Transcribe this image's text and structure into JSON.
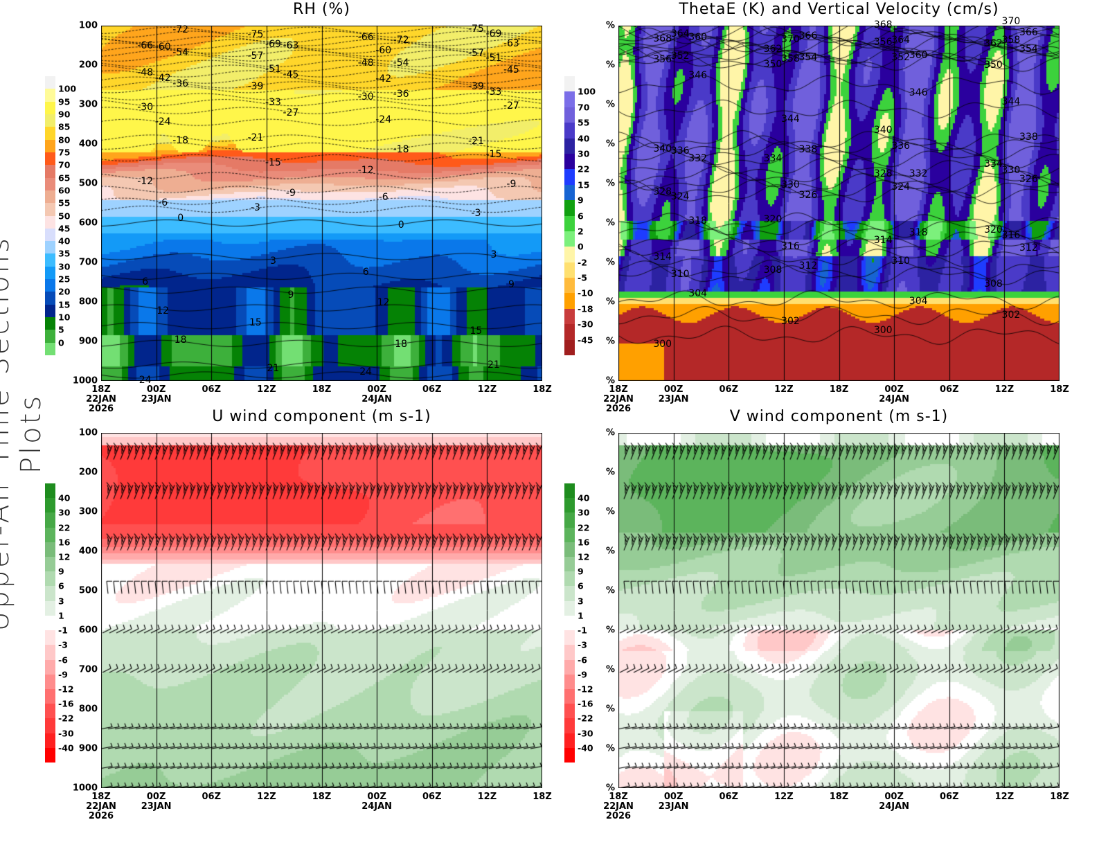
{
  "figure_title": "Upper-Air Time Sections Plots",
  "chart_data": [
    {
      "type": "heatmap",
      "title": "RH (%)",
      "ylabel": "",
      "y_ticks": [
        "100",
        "200",
        "300",
        "400",
        "500",
        "600",
        "700",
        "800",
        "900",
        "1000"
      ],
      "ylim": [
        100,
        1000
      ],
      "y_reversed": true,
      "x_ticks": [
        {
          "label": "18Z",
          "date": "22JAN",
          "year": "2026"
        },
        {
          "label": "00Z",
          "date": "23JAN"
        },
        {
          "label": "06Z"
        },
        {
          "label": "12Z"
        },
        {
          "label": "18Z"
        },
        {
          "label": "00Z",
          "date": "24JAN"
        },
        {
          "label": "06Z"
        },
        {
          "label": "12Z"
        },
        {
          "label": "18Z"
        }
      ],
      "colorbar": {
        "levels": [
          0,
          5,
          10,
          15,
          20,
          25,
          30,
          35,
          40,
          45,
          50,
          55,
          60,
          65,
          70,
          75,
          80,
          85,
          90,
          95,
          100
        ],
        "colors": [
          "#f2f2f2",
          "#fffb98",
          "#fff64a",
          "#f2ee6a",
          "#ffd62a",
          "#ffa51c",
          "#ff5a1a",
          "#e57a66",
          "#ea8c7a",
          "#eeae92",
          "#f4c8b2",
          "#fde3e3",
          "#d8defc",
          "#9ed2ff",
          "#3cbcff",
          "#139af7",
          "#0a78ea",
          "#064bb8",
          "#01258c",
          "#058205",
          "#3db03b",
          "#73df73"
        ]
      },
      "contours": {
        "field": "temperature",
        "levels": [
          24,
          21,
          18,
          15,
          12,
          9,
          6,
          3,
          0,
          -3,
          -6,
          -9,
          -12,
          -15,
          -18,
          -21,
          -24,
          -27,
          -30,
          -33,
          -36,
          -39,
          -42,
          -45,
          -48,
          -51,
          -54,
          -57,
          -60,
          -63,
          -66,
          -69,
          -72,
          -75
        ],
        "pressure_at_level": [
          985,
          960,
          905,
          860,
          815,
          770,
          735,
          685,
          600,
          565,
          545,
          515,
          480,
          435,
          405,
          385,
          345,
          315,
          295,
          280,
          262,
          250,
          238,
          222,
          208,
          196,
          182,
          170,
          162,
          152,
          143,
          135,
          122,
          112
        ]
      }
    },
    {
      "type": "heatmap",
      "title": "ThetaE (K) and Vertical Velocity (cm/s)",
      "y_ticks": [
        "%",
        "%",
        "%",
        "%",
        "%",
        "%",
        "%",
        "%",
        "%",
        "%"
      ],
      "x_ticks": [
        {
          "label": "18Z",
          "date": "22JAN",
          "year": "2026"
        },
        {
          "label": "00Z",
          "date": "23JAN"
        },
        {
          "label": "06Z"
        },
        {
          "label": "12Z"
        },
        {
          "label": "18Z"
        },
        {
          "label": "00Z",
          "date": "24JAN"
        },
        {
          "label": "06Z"
        },
        {
          "label": "12Z"
        },
        {
          "label": "18Z"
        }
      ],
      "colorbar": {
        "levels": [
          -45,
          -30,
          -18,
          -10,
          -5,
          -2,
          0,
          2,
          6,
          9,
          15,
          22,
          30,
          40,
          55,
          70,
          100
        ],
        "colors": [
          "#f2f2f2",
          "#7b6ee8",
          "#7060dc",
          "#4a3ac8",
          "#2c22a2",
          "#2a009e",
          "#1e3cff",
          "#1764d2",
          "#10a010",
          "#3cd23c",
          "#7cf07c",
          "#fff5a8",
          "#ffe070",
          "#ffbb3c",
          "#ffa000",
          "#c83c3c",
          "#b42828",
          "#a01e1e"
        ]
      },
      "contours": {
        "field": "thetaE",
        "levels": [
          300,
          302,
          304,
          308,
          310,
          312,
          314,
          316,
          318,
          320,
          324,
          326,
          328,
          330,
          332,
          334,
          336,
          338,
          340,
          344,
          346,
          350,
          352,
          354,
          356,
          358,
          360,
          362,
          364,
          366,
          368,
          370
        ],
        "pressure_at_level": [
          885,
          835,
          795,
          732,
          718,
          688,
          662,
          640,
          615,
          598,
          527,
          513,
          497,
          480,
          460,
          437,
          418,
          403,
          390,
          312,
          250,
          192,
          186,
          176,
          167,
          160,
          153,
          146,
          136,
          128,
          120,
          114
        ]
      }
    },
    {
      "type": "heatmap",
      "title": "U wind component (m s-1)",
      "y_ticks": [
        "100",
        "200",
        "300",
        "400",
        "500",
        "600",
        "700",
        "800",
        "900",
        "1000"
      ],
      "ylim": [
        100,
        1000
      ],
      "y_reversed": true,
      "x_ticks": [
        {
          "label": "18Z",
          "date": "22JAN",
          "year": "2026"
        },
        {
          "label": "00Z",
          "date": "23JAN"
        },
        {
          "label": "06Z"
        },
        {
          "label": "12Z"
        },
        {
          "label": "18Z"
        },
        {
          "label": "00Z",
          "date": "24JAN"
        },
        {
          "label": "06Z"
        },
        {
          "label": "12Z"
        },
        {
          "label": "18Z"
        }
      ],
      "colorbar": {
        "levels": [
          -40,
          -30,
          -22,
          -16,
          -12,
          -9,
          -6,
          -3,
          -1,
          1,
          3,
          6,
          9,
          12,
          16,
          22,
          30,
          40
        ],
        "colors": [
          "#1e8c1e",
          "#2d9a2d",
          "#46a846",
          "#5cb45c",
          "#7abc7a",
          "#96cc96",
          "#b0dab0",
          "#cbe5cb",
          "#e3f0e3",
          "#ffffff",
          "#ffe3e3",
          "#ffc8c8",
          "#ffaaaa",
          "#ff8c8c",
          "#ff7070",
          "#ff5050",
          "#ff3a3a",
          "#ff2020",
          "#ff0000"
        ]
      },
      "barb_levels": [
        150,
        250,
        380,
        490,
        600,
        700,
        850,
        900,
        950,
        1000
      ]
    },
    {
      "type": "heatmap",
      "title": "V wind component (m s-1)",
      "y_ticks": [
        "%",
        "%",
        "%",
        "%",
        "%",
        "%",
        "%",
        "%",
        "%",
        "%"
      ],
      "x_ticks": [
        {
          "label": "18Z",
          "date": "22JAN",
          "year": "2026"
        },
        {
          "label": "00Z",
          "date": "23JAN"
        },
        {
          "label": "06Z"
        },
        {
          "label": "12Z"
        },
        {
          "label": "18Z"
        },
        {
          "label": "00Z",
          "date": "24JAN"
        },
        {
          "label": "06Z"
        },
        {
          "label": "12Z"
        },
        {
          "label": "18Z"
        }
      ],
      "colorbar": {
        "levels": [
          -40,
          -30,
          -22,
          -16,
          -12,
          -9,
          -6,
          -3,
          -1,
          1,
          3,
          6,
          9,
          12,
          16,
          22,
          30,
          40
        ],
        "colors": [
          "#1e8c1e",
          "#2d9a2d",
          "#46a846",
          "#5cb45c",
          "#7abc7a",
          "#96cc96",
          "#b0dab0",
          "#cbe5cb",
          "#e3f0e3",
          "#ffffff",
          "#ffe3e3",
          "#ffc8c8",
          "#ffaaaa",
          "#ff8c8c",
          "#ff7070",
          "#ff5050",
          "#ff3a3a",
          "#ff2020",
          "#ff0000"
        ]
      },
      "barb_levels": [
        150,
        250,
        380,
        490,
        600,
        700,
        850,
        900,
        950,
        1000
      ]
    }
  ]
}
